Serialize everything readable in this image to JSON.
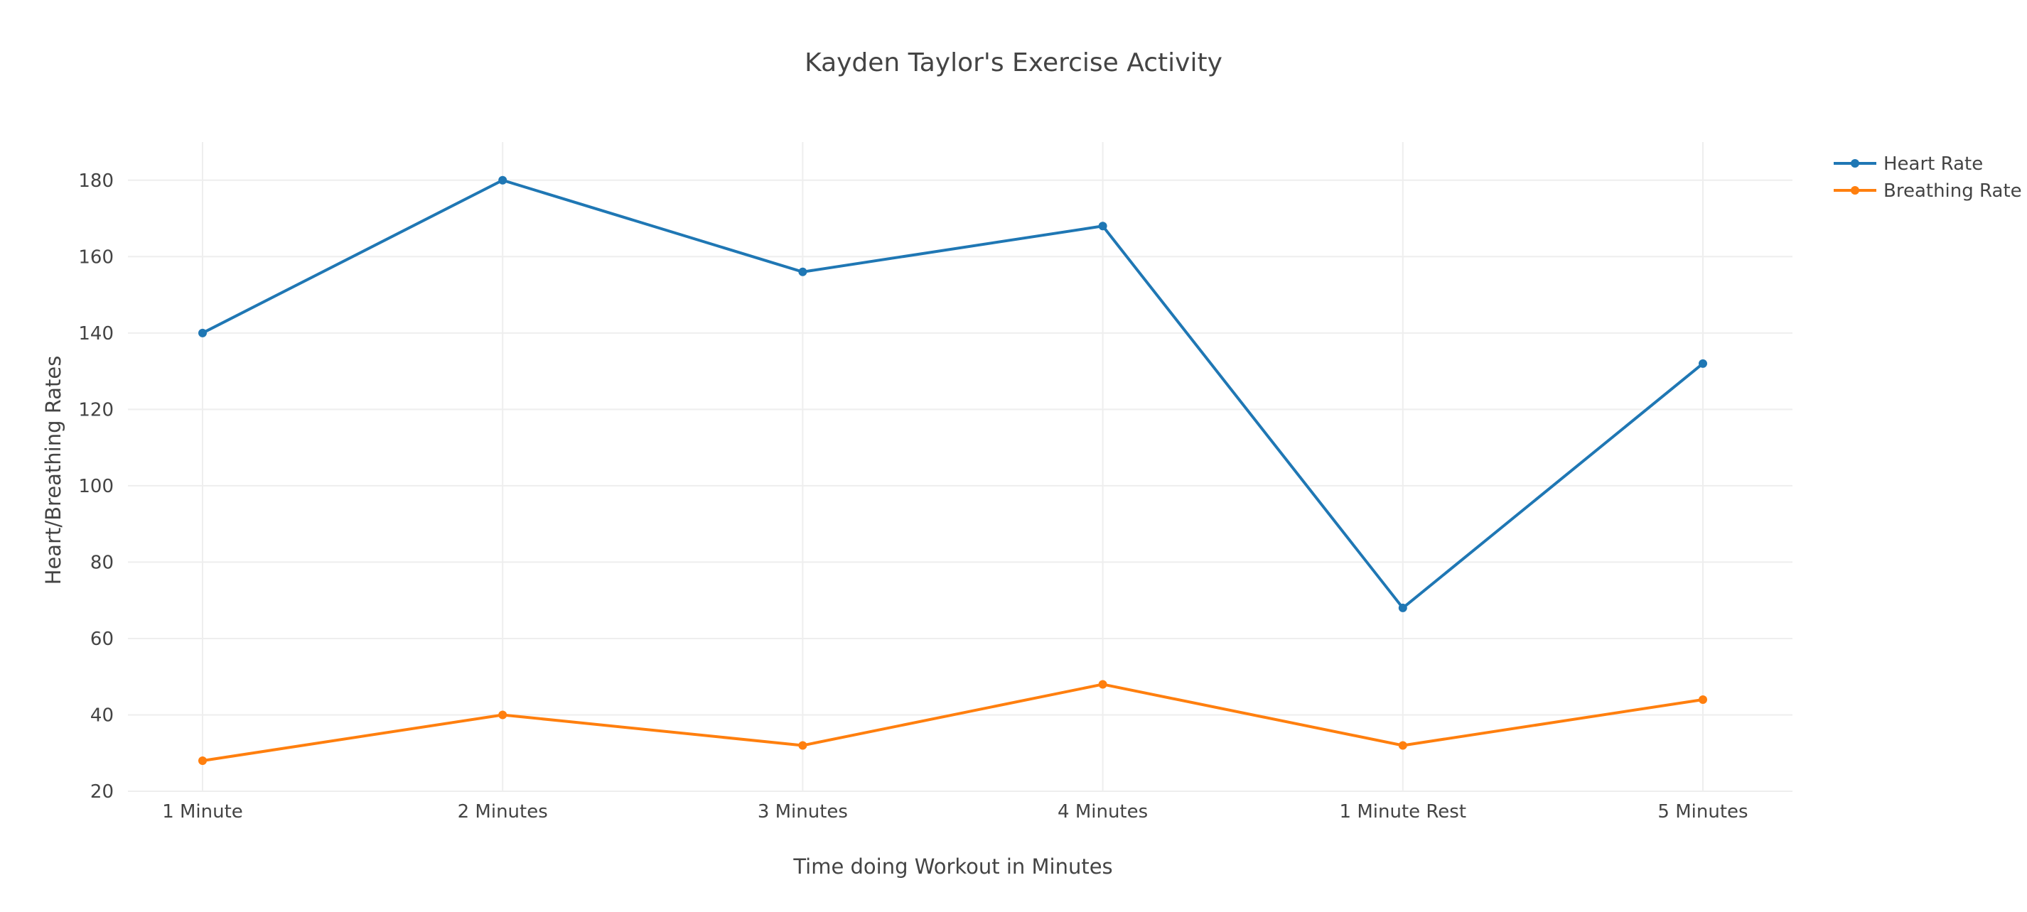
{
  "chart_data": {
    "type": "line",
    "title": "Kayden Taylor's Exercise Activity",
    "xlabel": "Time doing Workout in Minutes",
    "ylabel": "Heart/Breathing Rates",
    "categories": [
      "1 Minute",
      "2 Minutes",
      "3 Minutes",
      "4 Minutes",
      "1 Minute Rest",
      "5 Minutes"
    ],
    "ylim": [
      20,
      190
    ],
    "yticks": [
      20,
      40,
      60,
      80,
      100,
      120,
      140,
      160,
      180
    ],
    "grid": true,
    "legend_position": "top-right",
    "series": [
      {
        "name": "Heart Rate",
        "color": "#1f77b4",
        "values": [
          140,
          180,
          156,
          168,
          68,
          132
        ]
      },
      {
        "name": "Breathing Rate",
        "color": "#ff7f0e",
        "values": [
          28,
          40,
          32,
          48,
          32,
          44
        ]
      }
    ]
  }
}
